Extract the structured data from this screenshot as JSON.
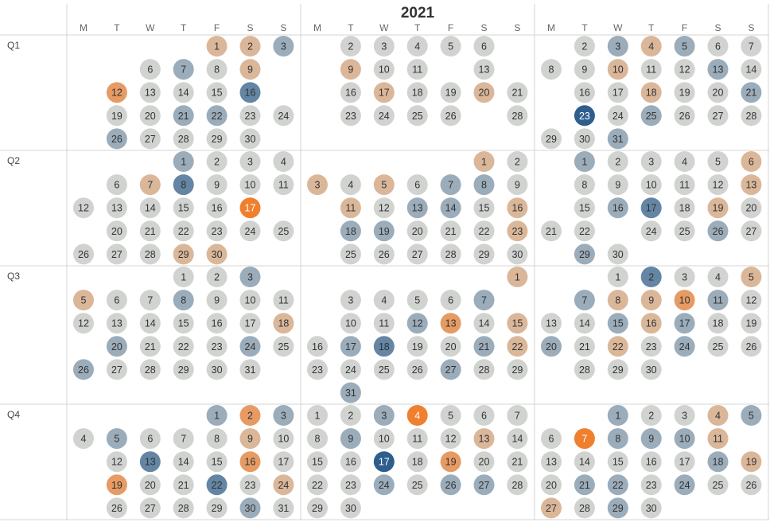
{
  "chart_data": {
    "type": "heatmap",
    "title": "2021",
    "year": 2021,
    "weekday_labels": [
      "M",
      "T",
      "W",
      "T",
      "F",
      "S",
      "S"
    ],
    "quarter_labels": [
      "Q1",
      "Q2",
      "Q3",
      "Q4"
    ],
    "legend": "none",
    "grid": true,
    "color_scale": {
      "low": "#f07f2e",
      "mid": "#d1d3d0",
      "high": "#2e5e8e"
    },
    "months": [
      {
        "month": 1,
        "values": {
          "1": -1,
          "2": -1,
          "3": 1,
          "6": 0,
          "7": 1,
          "8": 0,
          "9": -1,
          "12": -2,
          "13": 0,
          "14": 0,
          "15": 0,
          "16": 2,
          "19": 0,
          "20": 0,
          "21": 1,
          "22": 1,
          "23": 0,
          "24": 0,
          "26": 1,
          "27": 0,
          "28": 0,
          "29": 0,
          "30": 0
        }
      },
      {
        "month": 2,
        "values": {
          "2": 0,
          "3": 0,
          "4": 0,
          "5": 0,
          "6": 0,
          "9": -1,
          "10": 0,
          "11": 0,
          "13": 0,
          "16": 0,
          "17": -1,
          "18": 0,
          "19": 0,
          "20": -1,
          "21": 0,
          "23": 0,
          "24": 0,
          "25": 0,
          "26": 0,
          "28": 0
        }
      },
      {
        "month": 3,
        "values": {
          "2": 0,
          "3": 1,
          "4": -1,
          "5": 1,
          "6": 0,
          "7": 0,
          "8": 0,
          "9": 0,
          "10": -1,
          "11": 0,
          "12": 0,
          "13": 1,
          "14": 0,
          "16": 0,
          "17": 0,
          "18": -1,
          "19": 0,
          "20": 0,
          "21": 1,
          "23": 3,
          "24": 0,
          "25": 1,
          "26": 0,
          "27": 0,
          "28": 0,
          "29": 0,
          "30": 0,
          "31": 1
        }
      },
      {
        "month": 4,
        "values": {
          "1": 1,
          "2": 0,
          "3": 0,
          "4": 0,
          "6": 0,
          "7": -1,
          "8": 2,
          "9": 0,
          "10": 0,
          "11": 0,
          "12": 0,
          "13": 0,
          "14": 0,
          "15": 0,
          "16": 0,
          "17": -3,
          "20": 0,
          "21": 0,
          "22": 0,
          "23": 0,
          "24": 0,
          "25": 0,
          "26": 0,
          "27": 0,
          "28": 0,
          "29": -1,
          "30": -1
        }
      },
      {
        "month": 5,
        "values": {
          "1": -1,
          "2": 0,
          "3": -1,
          "4": 0,
          "5": -1,
          "6": 0,
          "7": 1,
          "8": 1,
          "9": 0,
          "11": -1,
          "12": 0,
          "13": 1,
          "14": 1,
          "15": 0,
          "16": -1,
          "18": 1,
          "19": 1,
          "20": 0,
          "21": 0,
          "22": 0,
          "23": -1,
          "25": 0,
          "26": 0,
          "27": 0,
          "28": 0,
          "29": 0,
          "30": 0
        }
      },
      {
        "month": 6,
        "values": {
          "1": 1,
          "2": 0,
          "3": 0,
          "4": 0,
          "5": 0,
          "6": -1,
          "8": 0,
          "9": 0,
          "10": 0,
          "11": 0,
          "12": 0,
          "13": -1,
          "15": 0,
          "16": 1,
          "17": 2,
          "18": 0,
          "19": -1,
          "20": 0,
          "21": 0,
          "22": 0,
          "24": 0,
          "25": 0,
          "26": 1,
          "27": 0,
          "29": 1,
          "30": 0
        }
      },
      {
        "month": 7,
        "values": {
          "1": 0,
          "2": 0,
          "3": 1,
          "5": -1,
          "6": 0,
          "7": 0,
          "8": 1,
          "9": 0,
          "10": 0,
          "11": 0,
          "12": 0,
          "13": 0,
          "14": 0,
          "15": 0,
          "16": 0,
          "17": 0,
          "18": -1,
          "20": 1,
          "21": 0,
          "22": 0,
          "23": 0,
          "24": 1,
          "25": 0,
          "26": 1,
          "27": 0,
          "28": 0,
          "29": 0,
          "30": 0,
          "31": 0
        }
      },
      {
        "month": 8,
        "values": {
          "1": -1,
          "3": 0,
          "4": 0,
          "5": 0,
          "6": 0,
          "7": 1,
          "10": 0,
          "11": 0,
          "12": 1,
          "13": -2,
          "14": 0,
          "15": -1,
          "16": 0,
          "17": 1,
          "18": 2,
          "19": 0,
          "20": 0,
          "21": 1,
          "22": -1,
          "23": 0,
          "24": 0,
          "25": 0,
          "26": 0,
          "27": 1,
          "28": 0,
          "29": 0,
          "31": 1
        }
      },
      {
        "month": 9,
        "values": {
          "1": 0,
          "2": 2,
          "3": 0,
          "4": 0,
          "5": -1,
          "7": 1,
          "8": -1,
          "9": -1,
          "10": -2,
          "11": 1,
          "12": 0,
          "13": 0,
          "14": 0,
          "15": 1,
          "16": -1,
          "17": 1,
          "18": 0,
          "19": 0,
          "20": 1,
          "21": 0,
          "22": -1,
          "23": 0,
          "24": 1,
          "25": 0,
          "26": 0,
          "28": 0,
          "29": 0,
          "30": 0
        }
      },
      {
        "month": 10,
        "values": {
          "1": 1,
          "2": -2,
          "3": 1,
          "4": 0,
          "5": 1,
          "6": 0,
          "7": 0,
          "8": 0,
          "9": -1,
          "10": 0,
          "12": 0,
          "13": 2,
          "14": 0,
          "15": 0,
          "16": -2,
          "17": 0,
          "19": -2,
          "20": 0,
          "21": 0,
          "22": 2,
          "23": 0,
          "24": -1,
          "26": 0,
          "27": 0,
          "28": 0,
          "29": 0,
          "30": 1,
          "31": 0
        }
      },
      {
        "month": 11,
        "values": {
          "1": 0,
          "2": 0,
          "3": 1,
          "4": -3,
          "5": 0,
          "6": 0,
          "7": 0,
          "8": 0,
          "9": 1,
          "10": 0,
          "11": 0,
          "12": 0,
          "13": -1,
          "14": 0,
          "15": 0,
          "16": 0,
          "17": 3,
          "18": 0,
          "19": -2,
          "20": 0,
          "21": 0,
          "22": 0,
          "23": 0,
          "24": 1,
          "25": 0,
          "26": 1,
          "27": 1,
          "28": 0,
          "29": 0,
          "30": 0
        }
      },
      {
        "month": 12,
        "values": {
          "1": 1,
          "2": 0,
          "3": 0,
          "4": -1,
          "5": 1,
          "6": 0,
          "7": -3,
          "8": 1,
          "9": 1,
          "10": 1,
          "11": -1,
          "13": 0,
          "14": 0,
          "15": 0,
          "16": 0,
          "17": 0,
          "18": 1,
          "19": -1,
          "20": 0,
          "21": 1,
          "22": 1,
          "23": 0,
          "24": 1,
          "25": 0,
          "26": 0,
          "27": -1,
          "28": 0,
          "29": 1,
          "30": 0
        }
      }
    ]
  }
}
